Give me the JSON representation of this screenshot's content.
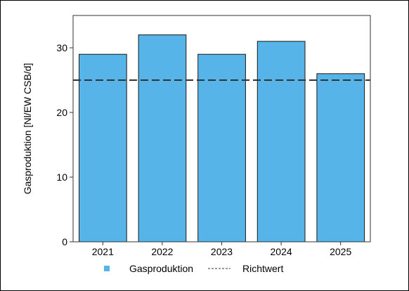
{
  "chart_data": {
    "type": "bar",
    "categories": [
      "2021",
      "2022",
      "2023",
      "2024",
      "2025"
    ],
    "series": [
      {
        "name": "Gasproduktion",
        "values": [
          29,
          32,
          29,
          31,
          26
        ],
        "color": "#56B4E9"
      }
    ],
    "reference_line": {
      "name": "Richtwert",
      "value": 25,
      "style": "dashed",
      "color": "#333333"
    },
    "title": "",
    "xlabel": "",
    "ylabel": "Gasproduktion [Nl/EW CSB/d]",
    "ylim": [
      0,
      35
    ],
    "yticks": [
      0,
      10,
      20,
      30
    ],
    "grid": false,
    "legend_position": "bottom",
    "bar_edge_color": "#1a1a1a",
    "background": "#ffffff"
  }
}
